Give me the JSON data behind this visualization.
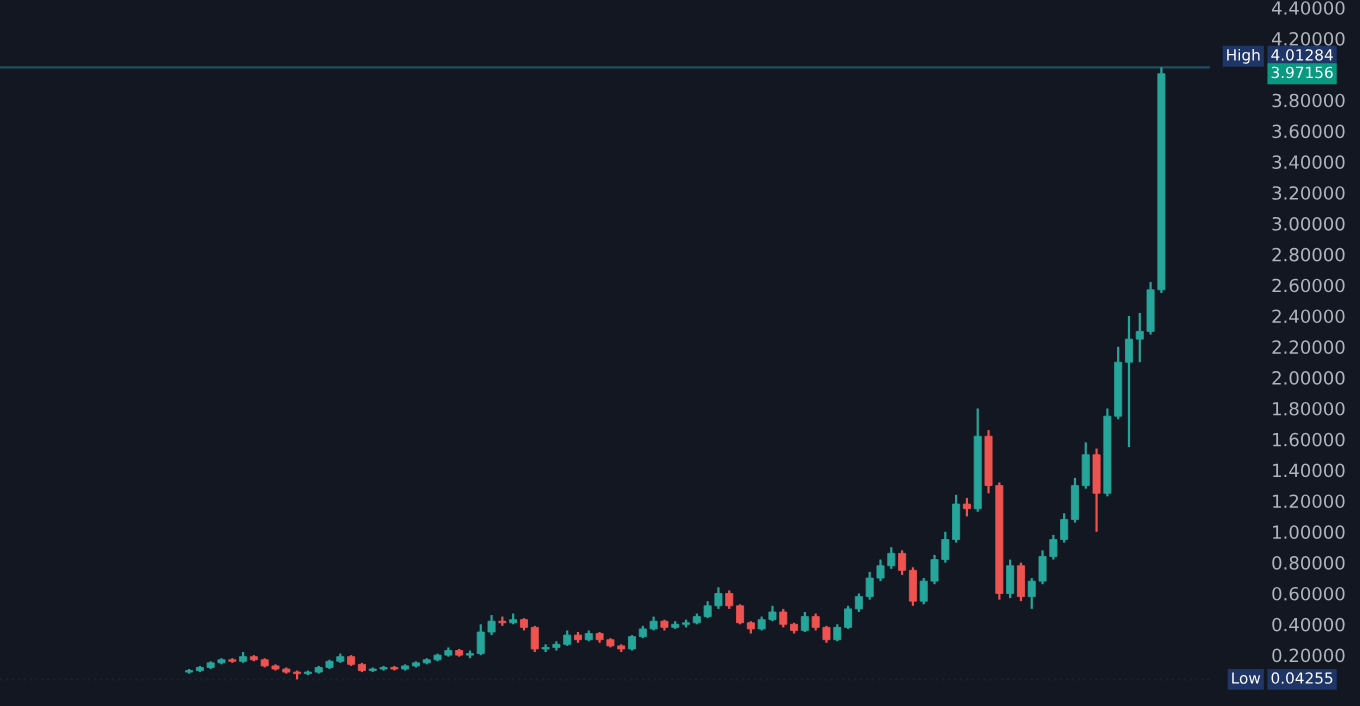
{
  "chart_data": {
    "type": "candlestick",
    "categories": [
      null,
      null,
      null,
      null,
      null,
      null,
      null,
      null,
      null,
      null,
      null,
      null,
      null,
      null,
      null,
      null,
      null,
      null,
      null,
      null,
      null,
      null,
      null,
      null,
      null,
      null,
      null,
      null,
      null,
      null,
      null,
      null,
      null,
      null,
      null,
      null,
      null,
      null,
      null,
      null,
      null,
      null,
      null,
      null,
      null,
      null,
      null,
      null,
      null,
      null,
      null,
      null,
      null,
      null,
      null,
      null,
      null,
      null,
      null,
      null,
      null,
      null,
      null,
      null,
      null,
      null,
      null,
      null,
      null,
      null,
      null,
      null,
      null,
      null,
      null,
      null,
      null,
      null,
      null,
      null,
      null,
      null,
      null,
      null,
      null,
      null,
      null,
      null,
      null,
      null,
      null,
      null,
      null,
      null,
      null,
      null,
      null,
      null,
      null,
      null,
      null,
      null,
      null,
      null,
      null,
      null,
      null,
      null,
      null,
      null,
      null,
      null
    ],
    "ohlc": [
      null,
      null,
      null,
      null,
      null,
      null,
      null,
      null,
      null,
      null,
      null,
      null,
      null,
      null,
      null,
      null,
      null,
      [
        0.09,
        0.11,
        0.08,
        0.1
      ],
      [
        0.1,
        0.13,
        0.09,
        0.12
      ],
      [
        0.12,
        0.16,
        0.11,
        0.15
      ],
      [
        0.15,
        0.18,
        0.14,
        0.17
      ],
      [
        0.17,
        0.18,
        0.15,
        0.16
      ],
      [
        0.16,
        0.22,
        0.15,
        0.19
      ],
      [
        0.19,
        0.2,
        0.16,
        0.17
      ],
      [
        0.17,
        0.18,
        0.12,
        0.13
      ],
      [
        0.13,
        0.14,
        0.1,
        0.11
      ],
      [
        0.11,
        0.12,
        0.08,
        0.09
      ],
      [
        0.09,
        0.1,
        0.04255,
        0.08
      ],
      [
        0.08,
        0.1,
        0.07,
        0.09
      ],
      [
        0.09,
        0.13,
        0.08,
        0.12
      ],
      [
        0.12,
        0.17,
        0.11,
        0.16
      ],
      [
        0.16,
        0.21,
        0.15,
        0.19
      ],
      [
        0.19,
        0.2,
        0.13,
        0.14
      ],
      [
        0.14,
        0.15,
        0.09,
        0.1
      ],
      [
        0.1,
        0.12,
        0.09,
        0.11
      ],
      [
        0.11,
        0.13,
        0.1,
        0.12
      ],
      [
        0.12,
        0.13,
        0.1,
        0.11
      ],
      [
        0.11,
        0.14,
        0.1,
        0.13
      ],
      [
        0.13,
        0.16,
        0.12,
        0.15
      ],
      [
        0.15,
        0.18,
        0.14,
        0.17
      ],
      [
        0.17,
        0.21,
        0.16,
        0.2
      ],
      [
        0.2,
        0.25,
        0.19,
        0.23
      ],
      [
        0.23,
        0.24,
        0.19,
        0.2
      ],
      [
        0.2,
        0.23,
        0.18,
        0.21
      ],
      [
        0.21,
        0.4,
        0.2,
        0.35
      ],
      [
        0.35,
        0.46,
        0.33,
        0.42
      ],
      [
        0.42,
        0.45,
        0.39,
        0.41
      ],
      [
        0.41,
        0.47,
        0.4,
        0.43
      ],
      [
        0.43,
        0.44,
        0.36,
        0.38
      ],
      [
        0.38,
        0.39,
        0.22,
        0.24
      ],
      [
        0.24,
        0.27,
        0.22,
        0.25
      ],
      [
        0.25,
        0.29,
        0.23,
        0.27
      ],
      [
        0.27,
        0.36,
        0.26,
        0.33
      ],
      [
        0.33,
        0.35,
        0.28,
        0.3
      ],
      [
        0.3,
        0.36,
        0.29,
        0.34
      ],
      [
        0.34,
        0.35,
        0.28,
        0.3
      ],
      [
        0.3,
        0.31,
        0.25,
        0.26
      ],
      [
        0.26,
        0.27,
        0.22,
        0.24
      ],
      [
        0.24,
        0.33,
        0.23,
        0.32
      ],
      [
        0.32,
        0.39,
        0.31,
        0.37
      ],
      [
        0.37,
        0.45,
        0.36,
        0.42
      ],
      [
        0.42,
        0.43,
        0.36,
        0.38
      ],
      [
        0.38,
        0.42,
        0.37,
        0.4
      ],
      [
        0.4,
        0.43,
        0.38,
        0.41
      ],
      [
        0.41,
        0.47,
        0.4,
        0.45
      ],
      [
        0.45,
        0.55,
        0.44,
        0.52
      ],
      [
        0.52,
        0.64,
        0.5,
        0.6
      ],
      [
        0.6,
        0.62,
        0.5,
        0.52
      ],
      [
        0.52,
        0.53,
        0.4,
        0.41
      ],
      [
        0.41,
        0.42,
        0.34,
        0.37
      ],
      [
        0.37,
        0.45,
        0.36,
        0.43
      ],
      [
        0.43,
        0.52,
        0.42,
        0.48
      ],
      [
        0.48,
        0.5,
        0.38,
        0.4
      ],
      [
        0.4,
        0.41,
        0.34,
        0.36
      ],
      [
        0.36,
        0.48,
        0.35,
        0.45
      ],
      [
        0.45,
        0.47,
        0.36,
        0.38
      ],
      [
        0.38,
        0.39,
        0.28,
        0.3
      ],
      [
        0.3,
        0.4,
        0.29,
        0.38
      ],
      [
        0.38,
        0.52,
        0.37,
        0.5
      ],
      [
        0.5,
        0.6,
        0.48,
        0.58
      ],
      [
        0.58,
        0.74,
        0.56,
        0.7
      ],
      [
        0.7,
        0.82,
        0.68,
        0.78
      ],
      [
        0.78,
        0.9,
        0.76,
        0.86
      ],
      [
        0.86,
        0.88,
        0.72,
        0.75
      ],
      [
        0.75,
        0.77,
        0.52,
        0.55
      ],
      [
        0.55,
        0.7,
        0.53,
        0.68
      ],
      [
        0.68,
        0.85,
        0.66,
        0.82
      ],
      [
        0.82,
        1.0,
        0.8,
        0.95
      ],
      [
        0.95,
        1.24,
        0.93,
        1.18
      ],
      [
        1.18,
        1.22,
        1.1,
        1.15
      ],
      [
        1.15,
        1.8,
        1.13,
        1.62
      ],
      [
        1.62,
        1.66,
        1.25,
        1.3
      ],
      [
        1.3,
        1.32,
        0.56,
        0.6
      ],
      [
        0.6,
        0.82,
        0.57,
        0.78
      ],
      [
        0.78,
        0.8,
        0.55,
        0.58
      ],
      [
        0.58,
        0.7,
        0.5,
        0.68
      ],
      [
        0.68,
        0.88,
        0.66,
        0.84
      ],
      [
        0.84,
        0.98,
        0.82,
        0.95
      ],
      [
        0.95,
        1.12,
        0.93,
        1.08
      ],
      [
        1.08,
        1.35,
        1.06,
        1.3
      ],
      [
        1.3,
        1.58,
        1.28,
        1.5
      ],
      [
        1.5,
        1.54,
        1.0,
        1.25
      ],
      [
        1.25,
        1.8,
        1.23,
        1.75
      ],
      [
        1.75,
        2.2,
        1.73,
        2.1
      ],
      [
        2.1,
        2.4,
        1.55,
        2.25
      ],
      [
        2.25,
        2.42,
        2.1,
        2.3
      ],
      [
        2.3,
        2.62,
        2.28,
        2.57
      ],
      [
        2.57,
        4.01284,
        2.55,
        3.97156
      ],
      null,
      null,
      null,
      null
    ],
    "colors": [
      null,
      null,
      null,
      null,
      null,
      null,
      null,
      null,
      null,
      null,
      null,
      null,
      null,
      null,
      null,
      null,
      null,
      "#26a69a",
      "#26a69a",
      "#26a69a",
      "#26a69a",
      "#ef5350",
      "#26a69a",
      "#ef5350",
      "#ef5350",
      "#ef5350",
      "#ef5350",
      "#ef5350",
      "#26a69a",
      "#26a69a",
      "#26a69a",
      "#26a69a",
      "#ef5350",
      "#ef5350",
      "#26a69a",
      "#26a69a",
      "#ef5350",
      "#26a69a",
      "#26a69a",
      "#26a69a",
      "#26a69a",
      "#26a69a",
      "#ef5350",
      "#26a69a",
      "#26a69a",
      "#26a69a",
      "#ef5350",
      "#26a69a",
      "#ef5350",
      "#ef5350",
      "#26a69a",
      "#26a69a",
      "#26a69a",
      "#ef5350",
      "#26a69a",
      "#ef5350",
      "#ef5350",
      "#ef5350",
      "#26a69a",
      "#26a69a",
      "#26a69a",
      "#ef5350",
      "#26a69a",
      "#26a69a",
      "#26a69a",
      "#26a69a",
      "#26a69a",
      "#ef5350",
      "#ef5350",
      "#ef5350",
      "#26a69a",
      "#26a69a",
      "#ef5350",
      "#ef5350",
      "#26a69a",
      "#ef5350",
      "#ef5350",
      "#26a69a",
      "#26a69a",
      "#26a69a",
      "#26a69a",
      "#26a69a",
      "#26a69a",
      "#ef5350",
      "#ef5350",
      "#26a69a",
      "#26a69a",
      "#26a69a",
      "#26a69a",
      "#ef5350",
      "#26a69a",
      "#ef5350",
      "#ef5350",
      "#26a69a",
      "#ef5350",
      "#26a69a",
      "#26a69a",
      "#26a69a",
      "#26a69a",
      "#26a69a",
      "#26a69a",
      "#ef5350",
      "#26a69a",
      "#26a69a",
      "#26a69a",
      "#26a69a",
      "#26a69a",
      "#26a69a",
      null,
      null,
      null,
      null
    ],
    "ylim": [
      -0.13,
      4.45
    ],
    "yticks": [
      {
        "value": 0.2,
        "label": "0.20000"
      },
      {
        "value": 0.4,
        "label": "0.40000"
      },
      {
        "value": 0.6,
        "label": "0.60000"
      },
      {
        "value": 0.8,
        "label": "0.80000"
      },
      {
        "value": 1.0,
        "label": "1.00000"
      },
      {
        "value": 1.2,
        "label": "1.20000"
      },
      {
        "value": 1.4,
        "label": "1.40000"
      },
      {
        "value": 1.6,
        "label": "1.60000"
      },
      {
        "value": 1.8,
        "label": "1.80000"
      },
      {
        "value": 2.0,
        "label": "2.00000"
      },
      {
        "value": 2.2,
        "label": "2.20000"
      },
      {
        "value": 2.4,
        "label": "2.40000"
      },
      {
        "value": 2.6,
        "label": "2.60000"
      },
      {
        "value": 2.8,
        "label": "2.80000"
      },
      {
        "value": 3.0,
        "label": "3.00000"
      },
      {
        "value": 3.2,
        "label": "3.20000"
      },
      {
        "value": 3.4,
        "label": "3.40000"
      },
      {
        "value": 3.6,
        "label": "3.60000"
      },
      {
        "value": 3.8,
        "label": "3.80000"
      },
      {
        "value": 4.2,
        "label": "4.20000"
      },
      {
        "value": 4.4,
        "label": "4.40000"
      }
    ],
    "tick_labels": "y",
    "grid": false,
    "ref_lines": [
      {
        "axis": "y",
        "value": 4.01284,
        "label": "High",
        "color": "#1f4f5c"
      },
      {
        "axis": "y",
        "value": 0.04255,
        "label": "Low",
        "color": "#1a2130",
        "line_style": "dotted"
      }
    ],
    "annotations": [
      "4.01284",
      "0.04255",
      "3.97156"
    ]
  }
}
